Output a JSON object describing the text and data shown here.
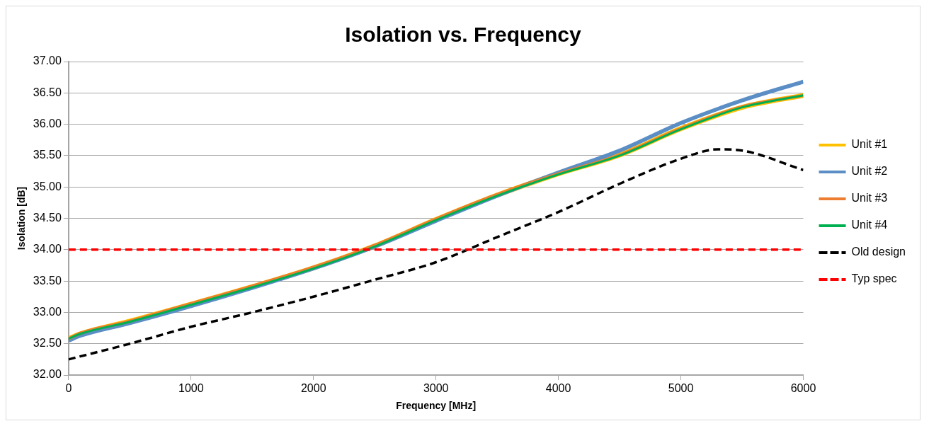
{
  "chart_data": {
    "type": "line",
    "title": "Isolation vs. Frequency",
    "xlabel": "Frequency [MHz]",
    "ylabel": "Isolation [dB]",
    "xlim": [
      0,
      6000
    ],
    "xticks": [
      0,
      1000,
      2000,
      3000,
      4000,
      5000,
      6000
    ],
    "ylim": [
      32,
      37
    ],
    "yticks": [
      {
        "value": 32,
        "label": "32.00"
      },
      {
        "value": 32.5,
        "label": "32.50"
      },
      {
        "value": 33,
        "label": "33.00"
      },
      {
        "value": 33.5,
        "label": "33.50"
      },
      {
        "value": 34,
        "label": "34.00"
      },
      {
        "value": 34.5,
        "label": "34.50"
      },
      {
        "value": 35,
        "label": "35.00"
      },
      {
        "value": 35.5,
        "label": "35.50"
      },
      {
        "value": 36,
        "label": "36.00"
      },
      {
        "value": 36.5,
        "label": "36.50"
      },
      {
        "value": 37,
        "label": "37.00"
      }
    ],
    "grid": "y",
    "legend": "right",
    "marker": "none",
    "x": [
      0,
      100,
      500,
      1000,
      1500,
      2000,
      2500,
      3000,
      3500,
      4000,
      4500,
      5000,
      5500,
      6000
    ],
    "series": [
      {
        "name": "Unit #1",
        "color": "#ffc000",
        "line_style": "solid",
        "values": [
          32.58,
          32.66,
          32.86,
          33.13,
          33.41,
          33.71,
          34.06,
          34.48,
          34.87,
          35.21,
          35.51,
          35.93,
          36.27,
          36.46
        ]
      },
      {
        "name": "Unit #2",
        "color": "#5b8ec4",
        "line_style": "solid",
        "values": [
          32.55,
          32.63,
          32.83,
          33.1,
          33.39,
          33.7,
          34.05,
          34.46,
          34.86,
          35.23,
          35.58,
          36.02,
          36.38,
          36.68
        ]
      },
      {
        "name": "Unit #3",
        "color": "#ed7d31",
        "line_style": "solid",
        "values": [
          32.58,
          32.67,
          32.86,
          33.14,
          33.42,
          33.72,
          34.07,
          34.49,
          34.88,
          35.21,
          35.51,
          35.93,
          36.28,
          36.46
        ]
      },
      {
        "name": "Unit #4",
        "color": "#00b050",
        "line_style": "solid",
        "values": [
          32.58,
          32.66,
          32.85,
          33.12,
          33.4,
          33.7,
          34.05,
          34.47,
          34.86,
          35.2,
          35.5,
          35.92,
          36.27,
          36.46
        ]
      },
      {
        "name": "Old design",
        "color": "#000000",
        "line_style": "dashed",
        "x": [
          0,
          500,
          1000,
          1500,
          2000,
          2500,
          3000,
          3500,
          4000,
          4500,
          5000,
          5300,
          5500,
          6000
        ],
        "values": [
          32.25,
          32.5,
          32.77,
          33.0,
          33.25,
          33.52,
          33.8,
          34.2,
          34.6,
          35.05,
          35.45,
          35.6,
          35.58,
          35.27
        ]
      },
      {
        "name": "Typ spec",
        "color": "#ff0000",
        "line_style": "dashed",
        "x": [
          0,
          6000
        ],
        "values": [
          34,
          34
        ]
      }
    ]
  }
}
